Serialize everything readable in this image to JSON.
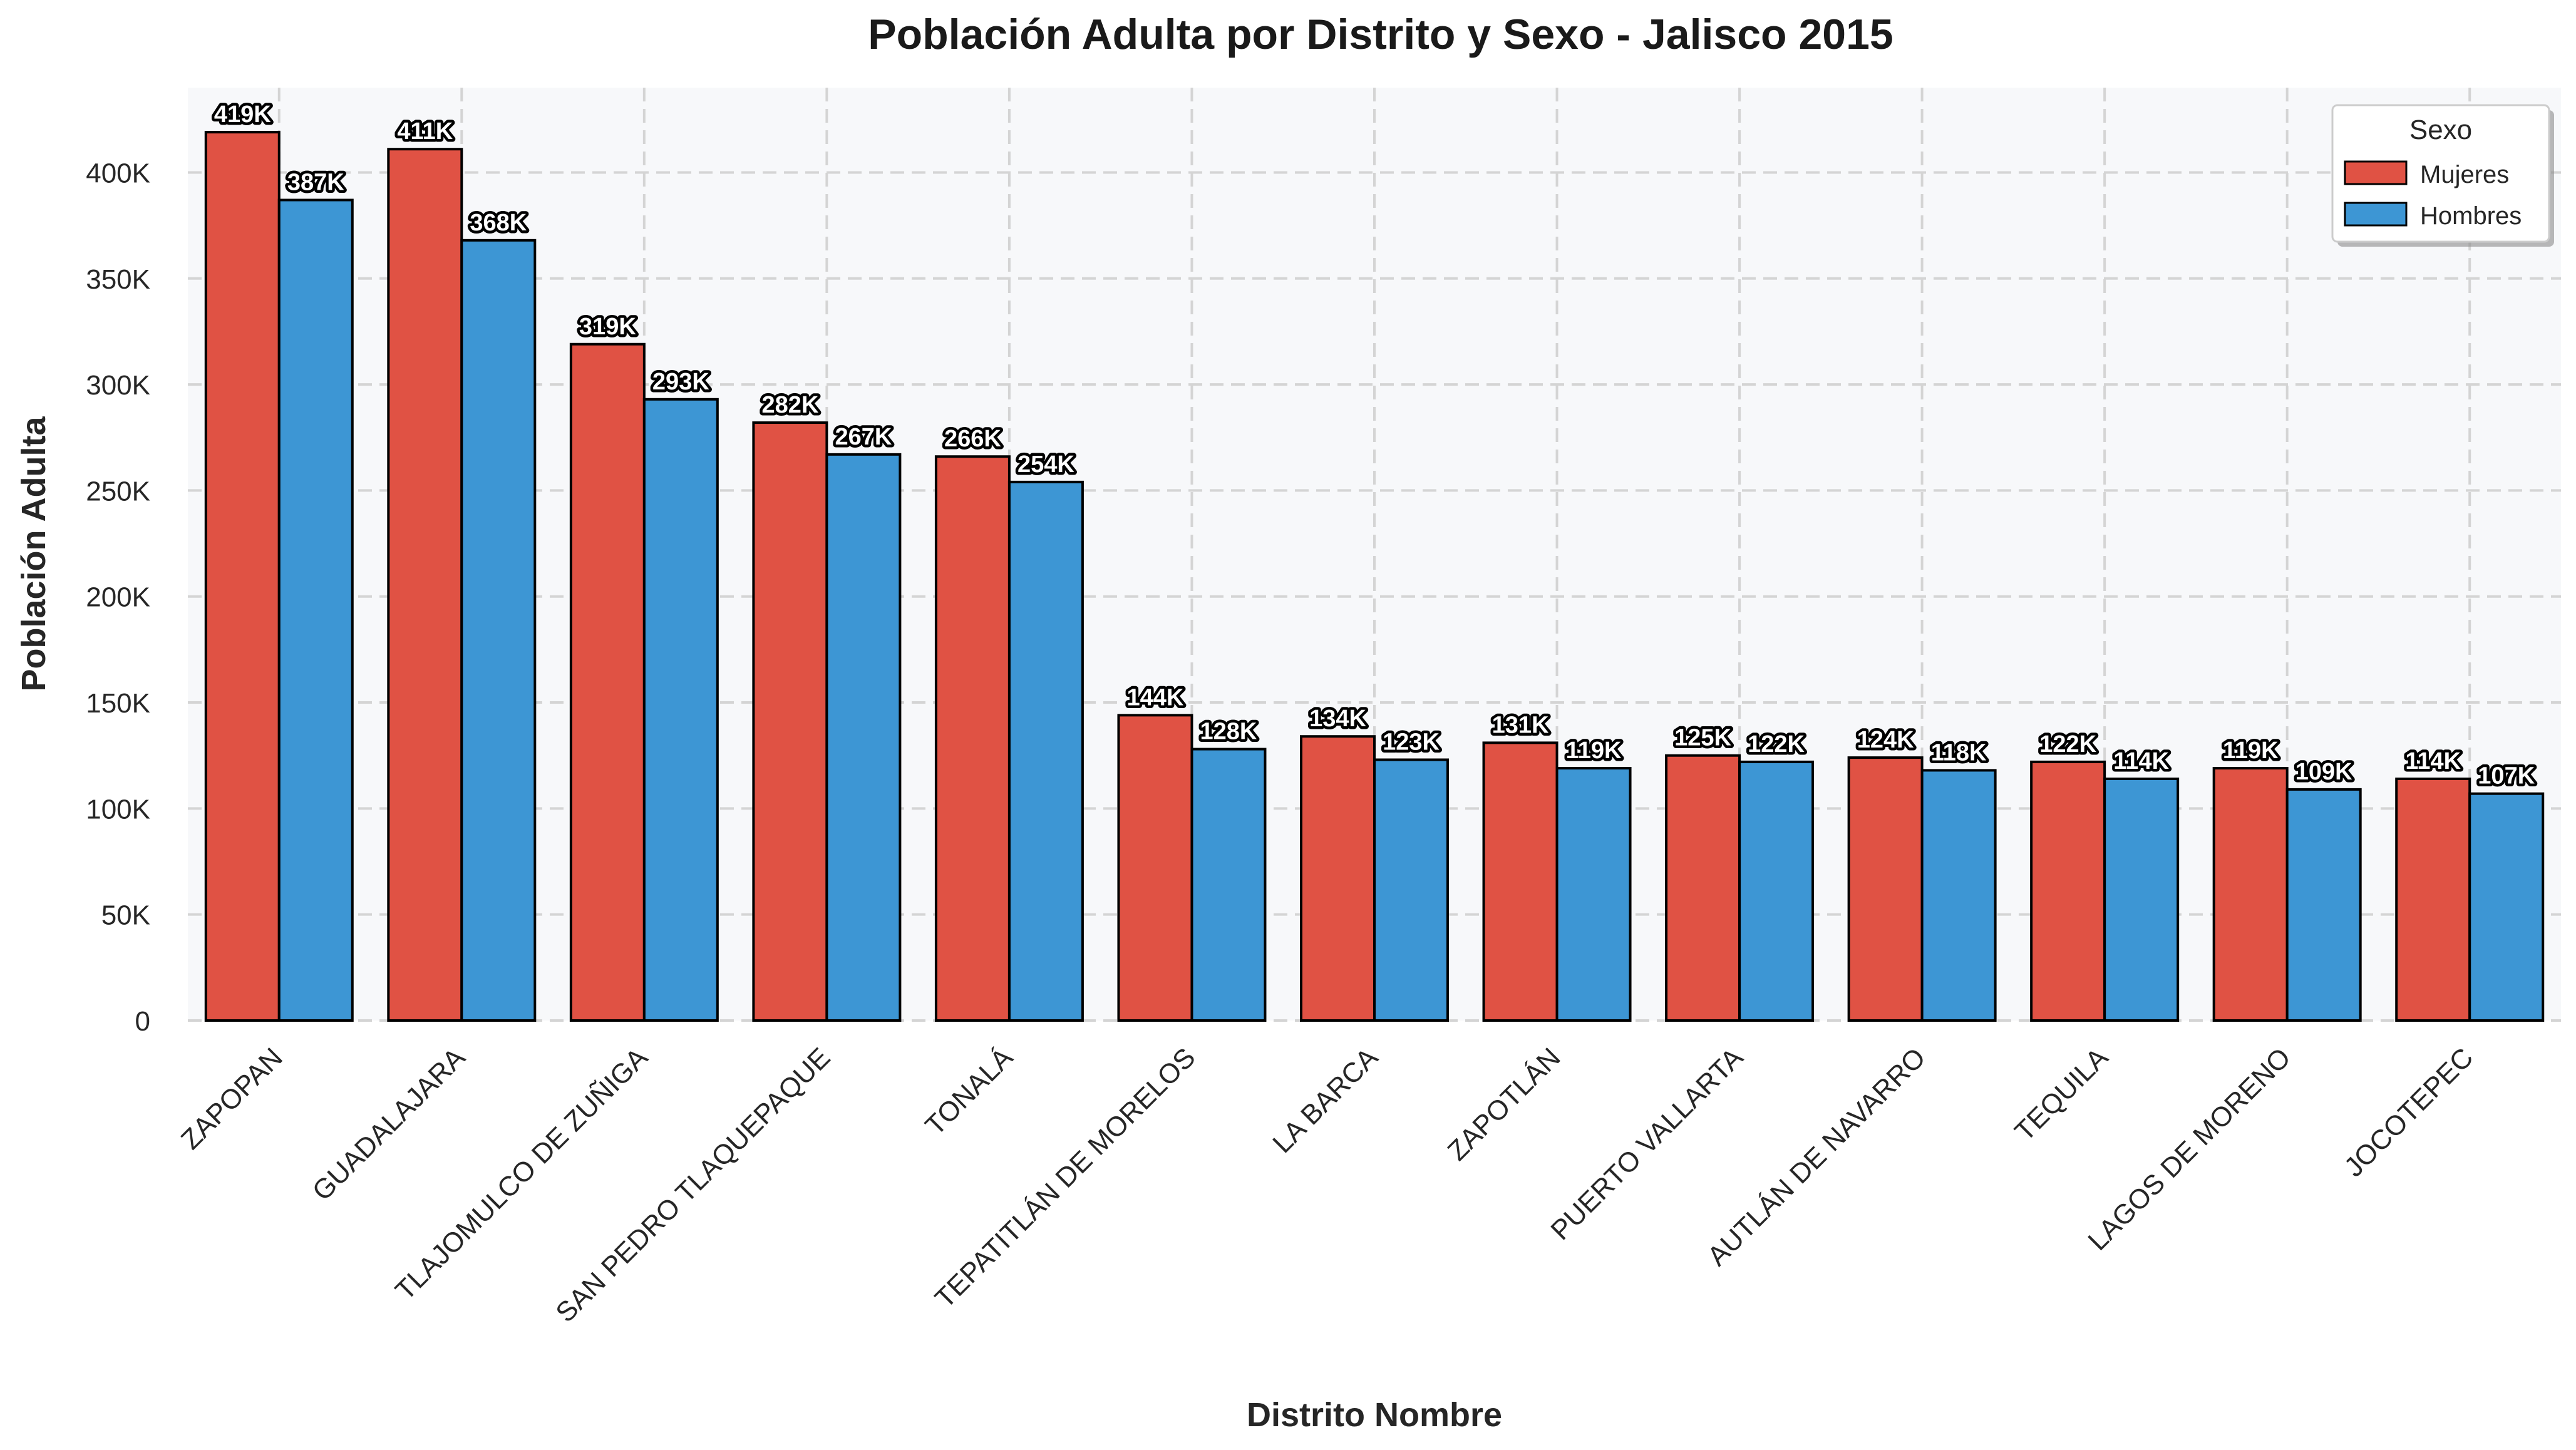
{
  "chart_data": {
    "type": "bar",
    "title": "Población Adulta por Distrito y Sexo - Jalisco 2015",
    "xlabel": "Distrito Nombre",
    "ylabel": "Población Adulta",
    "ylim": [
      0,
      440000
    ],
    "yticks": [
      0,
      50000,
      100000,
      150000,
      200000,
      250000,
      300000,
      350000,
      400000
    ],
    "ytick_labels": [
      "0",
      "50K",
      "100K",
      "150K",
      "200K",
      "250K",
      "300K",
      "350K",
      "400K"
    ],
    "grid": true,
    "legend_position": "top-right",
    "legend_title": "Sexo",
    "categories": [
      "ZAPOPAN",
      "GUADALAJARA",
      "TLAJOMULCO DE ZUÑIGA",
      "SAN PEDRO TLAQUEPAQUE",
      "TONALÁ",
      "TEPATITLÁN DE MORELOS",
      "LA BARCA",
      "ZAPOTLÁN",
      "PUERTO VALLARTA",
      "AUTLÁN DE NAVARRO",
      "TEQUILA",
      "LAGOS DE MORENO",
      "JOCOTEPEC"
    ],
    "series": [
      {
        "name": "Mujeres",
        "color": "#e05244",
        "values": [
          419000,
          411000,
          319000,
          282000,
          266000,
          144000,
          134000,
          131000,
          125000,
          124000,
          122000,
          119000,
          114000
        ],
        "labels": [
          "419K",
          "411K",
          "319K",
          "282K",
          "266K",
          "144K",
          "134K",
          "131K",
          "125K",
          "124K",
          "122K",
          "119K",
          "114K"
        ]
      },
      {
        "name": "Hombres",
        "color": "#3d96d4",
        "values": [
          387000,
          368000,
          293000,
          267000,
          254000,
          128000,
          123000,
          119000,
          122000,
          118000,
          114000,
          109000,
          107000
        ],
        "labels": [
          "387K",
          "368K",
          "293K",
          "267K",
          "254K",
          "128K",
          "123K",
          "119K",
          "122K",
          "118K",
          "114K",
          "109K",
          "107K"
        ]
      }
    ],
    "colors": {
      "background": "#f7f8fa",
      "grid": "#d4d4d4",
      "bar_edge": "#000000"
    }
  }
}
